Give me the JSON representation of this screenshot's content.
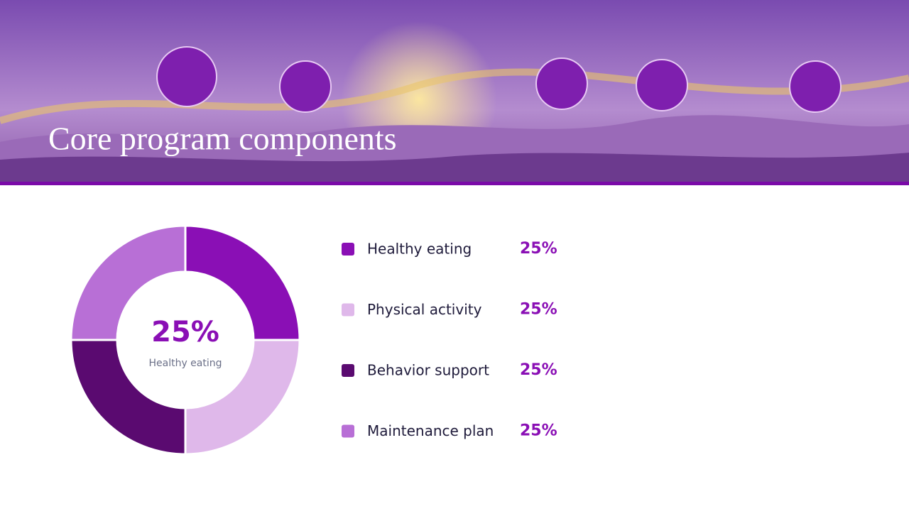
{
  "chart_data": {
    "type": "donut",
    "title": "Core program components",
    "categories": [
      "Healthy eating",
      "Physical activity",
      "Behavior support",
      "Maintenance plan"
    ],
    "values": [
      25,
      25,
      25,
      25
    ],
    "value_labels": [
      "25%",
      "25%",
      "25%",
      "25%"
    ],
    "colors": [
      "#8a0fb5",
      "#dfb8ea",
      "#5a0a70",
      "#b86fd6"
    ]
  }
}
